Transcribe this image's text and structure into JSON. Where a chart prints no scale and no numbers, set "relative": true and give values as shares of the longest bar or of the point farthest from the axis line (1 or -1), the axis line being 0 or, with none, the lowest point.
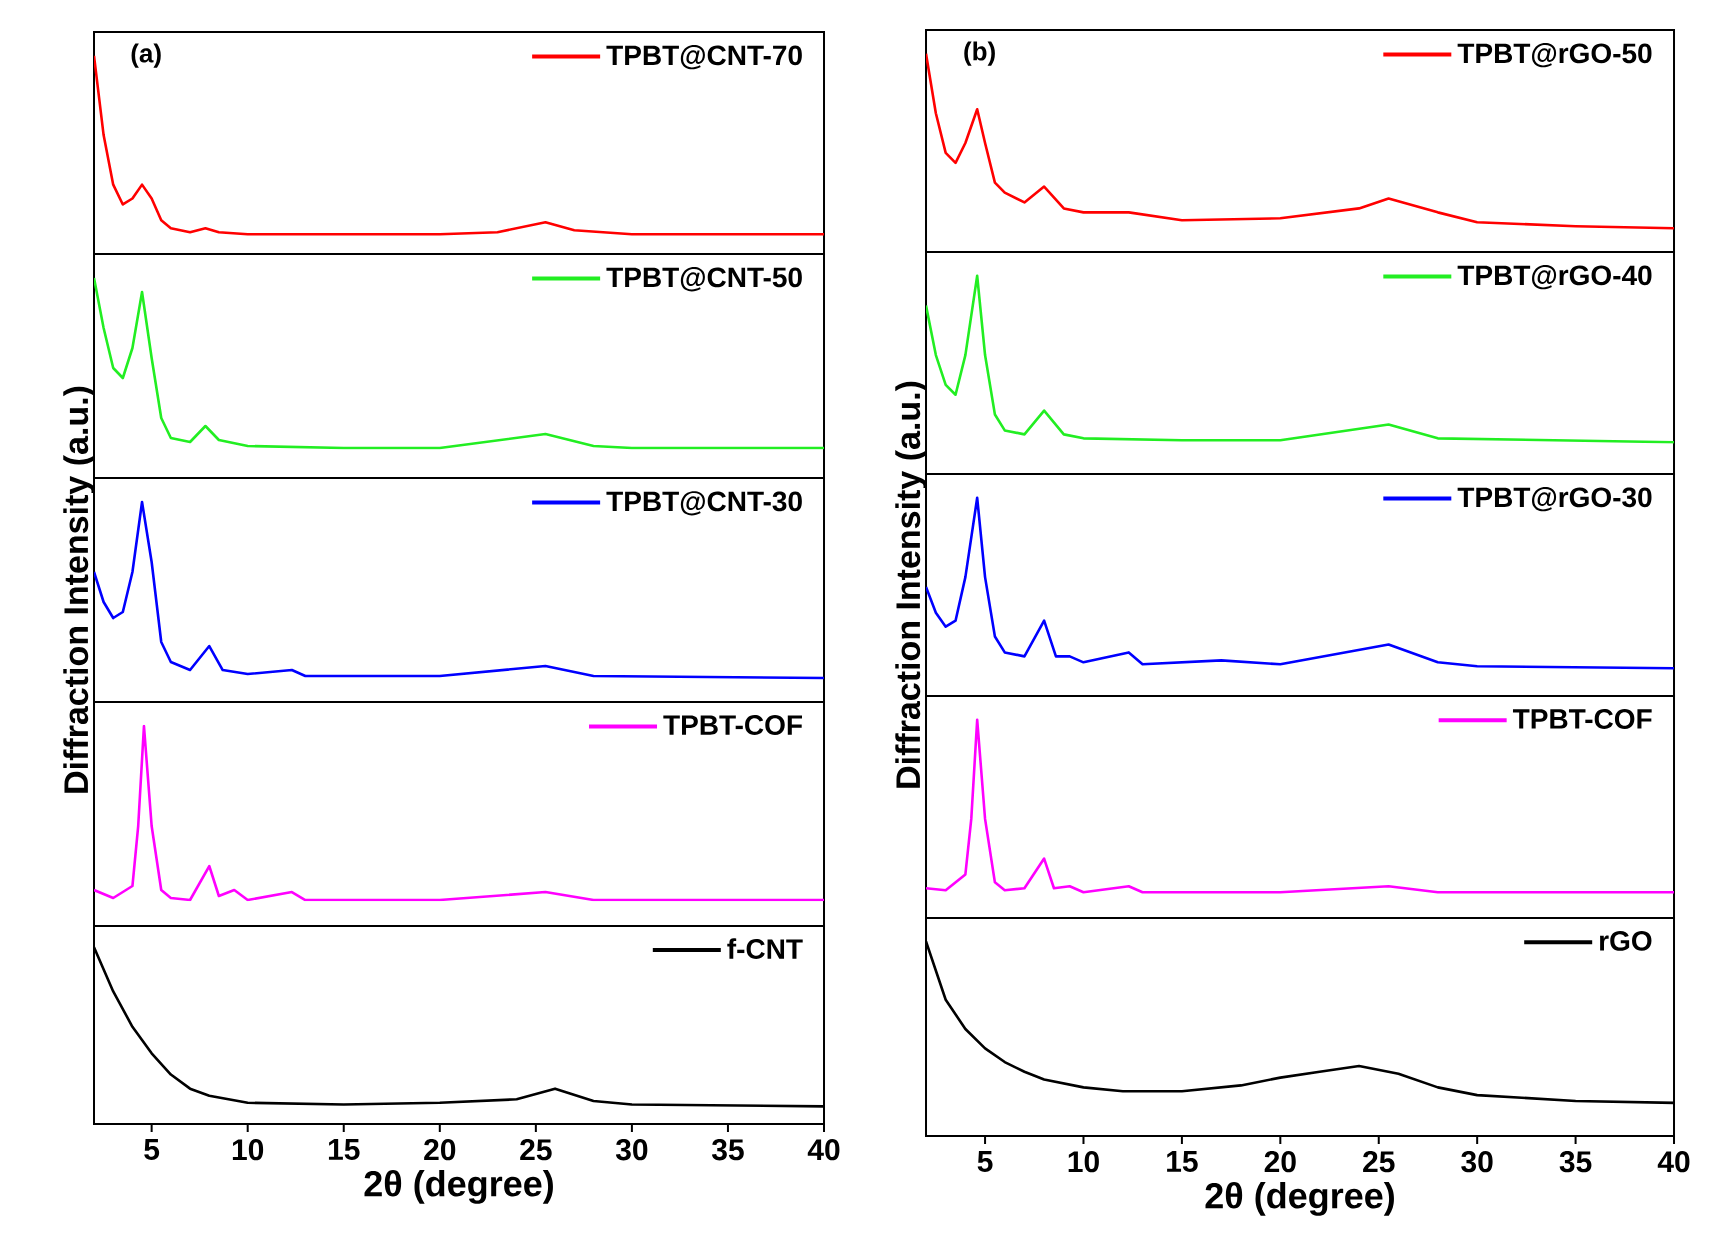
{
  "chart_data": [
    {
      "type": "line",
      "relative": true,
      "annotations": [
        "(a)"
      ],
      "legend": "top right",
      "xlim": [
        2,
        40
      ],
      "tick_labels": false,
      "series": [
        {
          "name": "TPBT@CNT-70",
          "color": "#ff0000",
          "x": [
            2,
            2.5,
            3,
            3.5,
            4,
            4.5,
            5,
            5.5,
            6,
            7,
            7.8,
            8.5,
            10,
            15,
            20,
            23,
            25.5,
            27,
            30,
            35,
            40
          ],
          "values": [
            1.0,
            0.6,
            0.35,
            0.25,
            0.28,
            0.35,
            0.28,
            0.17,
            0.13,
            0.11,
            0.13,
            0.11,
            0.1,
            0.1,
            0.1,
            0.11,
            0.16,
            0.12,
            0.1,
            0.1,
            0.1
          ]
        }
      ]
    },
    {
      "type": "line",
      "relative": true,
      "legend": "top right",
      "xlim": [
        2,
        40
      ],
      "tick_labels": false,
      "series": [
        {
          "name": "TPBT@CNT-50",
          "color": "#22ee22",
          "x": [
            2,
            2.5,
            3,
            3.5,
            4,
            4.5,
            5,
            5.5,
            6,
            7,
            7.8,
            8.5,
            10,
            15,
            20,
            25.5,
            28,
            30,
            40
          ],
          "values": [
            1.0,
            0.75,
            0.55,
            0.5,
            0.65,
            0.93,
            0.6,
            0.3,
            0.2,
            0.18,
            0.26,
            0.19,
            0.16,
            0.15,
            0.15,
            0.22,
            0.16,
            0.15,
            0.15
          ]
        }
      ]
    },
    {
      "type": "line",
      "relative": true,
      "legend": "top right",
      "xlim": [
        2,
        40
      ],
      "tick_labels": false,
      "ylabel": "Diffraction Intensity (a.u.)",
      "series": [
        {
          "name": "TPBT@CNT-30",
          "color": "#0000ff",
          "x": [
            2,
            2.5,
            3,
            3.5,
            4,
            4.5,
            5,
            5.5,
            6,
            7,
            8,
            8.7,
            10,
            12.3,
            13,
            20,
            25.5,
            28,
            40
          ],
          "values": [
            0.65,
            0.5,
            0.42,
            0.45,
            0.65,
            1.0,
            0.7,
            0.3,
            0.2,
            0.16,
            0.28,
            0.16,
            0.14,
            0.16,
            0.13,
            0.13,
            0.18,
            0.13,
            0.12
          ]
        }
      ]
    },
    {
      "type": "line",
      "relative": true,
      "legend": "top right",
      "xlim": [
        2,
        40
      ],
      "tick_labels": false,
      "series": [
        {
          "name": "TPBT-COF",
          "color": "#ff00ff",
          "x": [
            2,
            3,
            4,
            4.3,
            4.6,
            5,
            5.5,
            6,
            7,
            8,
            8.5,
            9.3,
            10,
            12.3,
            13,
            20,
            25.5,
            28,
            40
          ],
          "values": [
            0.18,
            0.14,
            0.2,
            0.5,
            1.0,
            0.5,
            0.18,
            0.14,
            0.13,
            0.3,
            0.15,
            0.18,
            0.13,
            0.17,
            0.13,
            0.13,
            0.17,
            0.13,
            0.13
          ]
        }
      ]
    },
    {
      "type": "line",
      "relative": true,
      "legend": "top right",
      "xlim": [
        2,
        40
      ],
      "xticks": [
        5,
        10,
        15,
        20,
        25,
        30,
        35,
        40
      ],
      "tick_labels": "x",
      "xlabel": "2θ (degree)",
      "series": [
        {
          "name": "f-CNT",
          "color": "#000000",
          "x": [
            2,
            3,
            4,
            5,
            6,
            7,
            8,
            10,
            15,
            20,
            24,
            26,
            28,
            30,
            40
          ],
          "values": [
            1.0,
            0.75,
            0.55,
            0.4,
            0.28,
            0.2,
            0.16,
            0.12,
            0.11,
            0.12,
            0.14,
            0.2,
            0.13,
            0.11,
            0.1
          ]
        }
      ]
    },
    {
      "type": "line",
      "relative": true,
      "annotations": [
        "(b)"
      ],
      "legend": "top right",
      "xlim": [
        2,
        40
      ],
      "tick_labels": false,
      "series": [
        {
          "name": "TPBT@rGO-50",
          "color": "#ff0000",
          "x": [
            2,
            2.5,
            3,
            3.5,
            4,
            4.6,
            5,
            5.5,
            6,
            7,
            8,
            9,
            10,
            12.3,
            15,
            20,
            24,
            25.5,
            28,
            30,
            35,
            40
          ],
          "values": [
            1.0,
            0.7,
            0.5,
            0.45,
            0.55,
            0.72,
            0.55,
            0.35,
            0.3,
            0.25,
            0.33,
            0.22,
            0.2,
            0.2,
            0.16,
            0.17,
            0.22,
            0.27,
            0.2,
            0.15,
            0.13,
            0.12
          ]
        }
      ]
    },
    {
      "type": "line",
      "relative": true,
      "legend": "top right",
      "xlim": [
        2,
        40
      ],
      "tick_labels": false,
      "series": [
        {
          "name": "TPBT@rGO-40",
          "color": "#22ee22",
          "x": [
            2,
            2.5,
            3,
            3.5,
            4,
            4.6,
            5,
            5.5,
            6,
            7,
            8,
            9,
            10,
            15,
            20,
            25.5,
            28,
            40
          ],
          "values": [
            0.85,
            0.6,
            0.45,
            0.4,
            0.6,
            1.0,
            0.6,
            0.3,
            0.22,
            0.2,
            0.32,
            0.2,
            0.18,
            0.17,
            0.17,
            0.25,
            0.18,
            0.16
          ]
        }
      ]
    },
    {
      "type": "line",
      "relative": true,
      "legend": "top right",
      "xlim": [
        2,
        40
      ],
      "tick_labels": false,
      "ylabel": "Diffraction Intensity (a.u.)",
      "series": [
        {
          "name": "TPBT@rGO-30",
          "color": "#0000ff",
          "x": [
            2,
            2.5,
            3,
            3.5,
            4,
            4.6,
            5,
            5.5,
            6,
            7,
            8,
            8.6,
            9.3,
            10,
            12.3,
            13,
            17,
            20,
            25.5,
            28,
            30,
            40
          ],
          "values": [
            0.55,
            0.42,
            0.35,
            0.38,
            0.6,
            1.0,
            0.6,
            0.3,
            0.22,
            0.2,
            0.38,
            0.2,
            0.2,
            0.17,
            0.22,
            0.16,
            0.18,
            0.16,
            0.26,
            0.17,
            0.15,
            0.14
          ]
        }
      ]
    },
    {
      "type": "line",
      "relative": true,
      "legend": "top right",
      "xlim": [
        2,
        40
      ],
      "tick_labels": false,
      "series": [
        {
          "name": "TPBT-COF",
          "color": "#ff00ff",
          "x": [
            2,
            3,
            4,
            4.3,
            4.6,
            5,
            5.5,
            6,
            7,
            8,
            8.5,
            9.3,
            10,
            12.3,
            13,
            20,
            25.5,
            28,
            40
          ],
          "values": [
            0.15,
            0.14,
            0.22,
            0.5,
            1.0,
            0.5,
            0.18,
            0.14,
            0.15,
            0.3,
            0.15,
            0.16,
            0.13,
            0.16,
            0.13,
            0.13,
            0.16,
            0.13,
            0.13
          ]
        }
      ]
    },
    {
      "type": "line",
      "relative": true,
      "legend": "top right",
      "xlim": [
        2,
        40
      ],
      "xticks": [
        5,
        10,
        15,
        20,
        25,
        30,
        35,
        40
      ],
      "tick_labels": "x",
      "xlabel": "2θ (degree)",
      "series": [
        {
          "name": "rGO",
          "color": "#000000",
          "x": [
            2,
            3,
            4,
            5,
            6,
            7,
            8,
            10,
            12,
            15,
            18,
            20,
            22,
            24,
            26,
            28,
            30,
            35,
            40
          ],
          "values": [
            1.0,
            0.7,
            0.55,
            0.45,
            0.38,
            0.33,
            0.29,
            0.25,
            0.23,
            0.23,
            0.26,
            0.3,
            0.33,
            0.36,
            0.32,
            0.25,
            0.21,
            0.18,
            0.17
          ]
        }
      ]
    }
  ]
}
